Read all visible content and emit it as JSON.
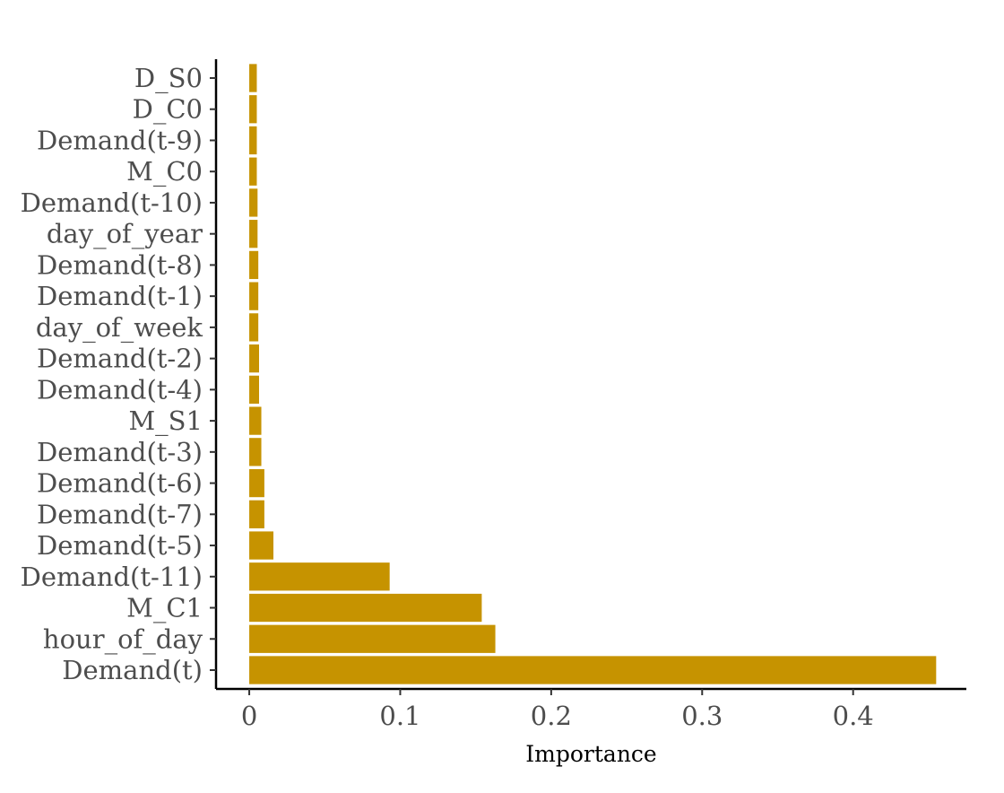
{
  "chart_data": {
    "type": "bar",
    "orientation": "horizontal",
    "categories": [
      "D_S0",
      "D_C0",
      "Demand(t-9)",
      "M_C0",
      "Demand(t-10)",
      "day_of_year",
      "Demand(t-8)",
      "Demand(t-1)",
      "day_of_week",
      "Demand(t-2)",
      "Demand(t-4)",
      "M_S1",
      "Demand(t-3)",
      "Demand(t-6)",
      "Demand(t-7)",
      "Demand(t-5)",
      "Demand(t-11)",
      "M_C1",
      "hour_of_day",
      "Demand(t)"
    ],
    "values": [
      0.005,
      0.005,
      0.005,
      0.005,
      0.0055,
      0.0055,
      0.006,
      0.006,
      0.006,
      0.0065,
      0.0065,
      0.008,
      0.008,
      0.01,
      0.01,
      0.016,
      0.093,
      0.154,
      0.163,
      0.455
    ],
    "title": "",
    "xlabel": "Importance",
    "ylabel": "",
    "xlim": [
      -0.022,
      0.475
    ],
    "xticks": [
      0,
      0.1,
      0.2,
      0.3,
      0.4
    ],
    "xtick_labels": [
      "0",
      "0.1",
      "0.2",
      "0.3",
      "0.4"
    ],
    "grid": false,
    "legend": "none",
    "bar_color": "#C69300"
  }
}
